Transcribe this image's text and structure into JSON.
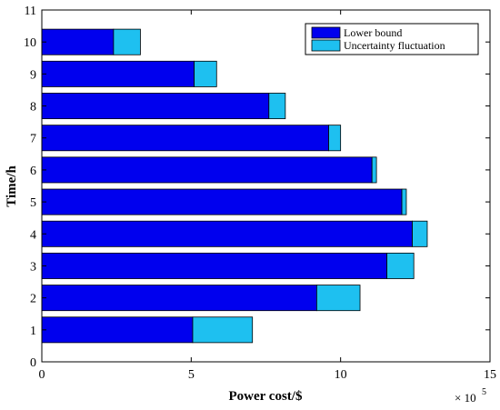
{
  "chart_data": {
    "type": "bar",
    "orientation": "horizontal",
    "stacked": true,
    "categories": [
      "1",
      "2",
      "3",
      "4",
      "5",
      "6",
      "7",
      "8",
      "9",
      "10"
    ],
    "series": [
      {
        "name": "Lower bound",
        "color": "#0000ee",
        "values": [
          5.05,
          9.2,
          11.55,
          12.4,
          12.05,
          11.05,
          9.6,
          7.6,
          5.1,
          2.4
        ]
      },
      {
        "name": "Uncertainty fluctuation",
        "color": "#1ec0f0",
        "values": [
          2.0,
          1.45,
          0.9,
          0.5,
          0.15,
          0.15,
          0.4,
          0.55,
          0.75,
          0.9
        ]
      }
    ],
    "xlabel": "Power cost/$",
    "ylabel": "Time/h",
    "x_exponent_label": "× 10",
    "x_exponent_power": "5",
    "xlim": [
      0,
      15
    ],
    "ylim": [
      0,
      11
    ],
    "x_ticks": [
      "0",
      "5",
      "10",
      "15"
    ],
    "y_ticks": [
      "0",
      "1",
      "2",
      "3",
      "4",
      "5",
      "6",
      "7",
      "8",
      "9",
      "10",
      "11"
    ],
    "legend_position": "top-right",
    "grid": false
  }
}
